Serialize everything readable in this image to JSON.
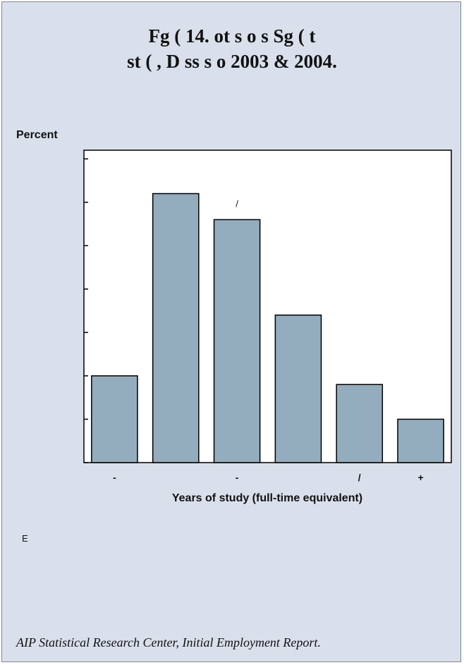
{
  "figure": {
    "title_line1": "Fg (    14.   ot           s o        s  Sg        ( t",
    "title_line2": "st (   ,    D      ss s o   2003 & 2004.",
    "note": "E",
    "source": "AIP Statistical Research Center, Initial Employment Report."
  },
  "chart_data": {
    "type": "bar",
    "ylabel": "Percent",
    "xlabel": "Years of study (full-time equivalent)",
    "categories": [
      "-",
      "",
      "-",
      "",
      "/",
      "+"
    ],
    "values": [
      10,
      31,
      28,
      17,
      9,
      5
    ],
    "ylim": [
      0,
      36
    ],
    "yticks": [
      0,
      5,
      10,
      15,
      20,
      25,
      30,
      35
    ],
    "data_labels": [
      "",
      "",
      "/",
      "",
      "",
      ""
    ],
    "bar_color": "#93adbf",
    "grid": false,
    "legend": false
  }
}
